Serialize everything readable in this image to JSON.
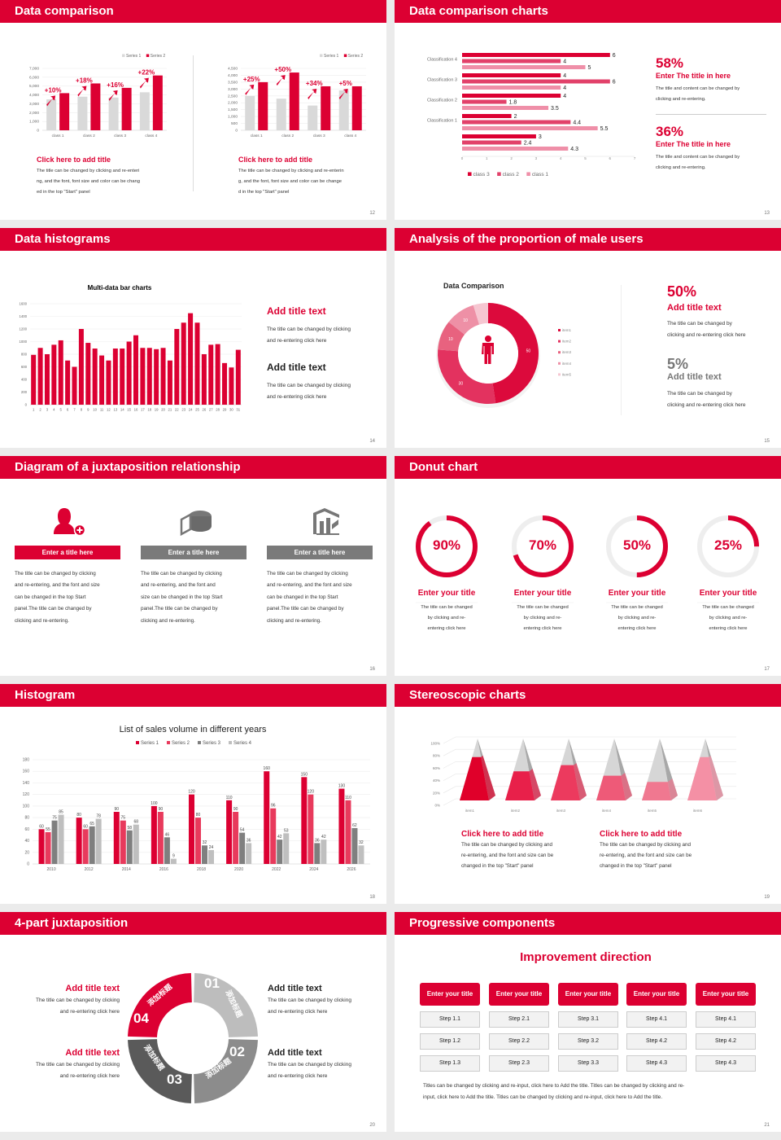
{
  "colors": {
    "accent": "#dc0032",
    "gray": "#d9d9d9"
  },
  "slides": {
    "s12": {
      "title": "Data comparison",
      "page": "12",
      "blocks": [
        {
          "heading": "Click here to add title",
          "lines": [
            "The title can be changed by clicking and re-enteri",
            "ng, and the font, font size and color can be chang",
            "ed in the top \"Start\" panel"
          ]
        },
        {
          "heading": "Click here to add title",
          "lines": [
            "The title can be changed by clicking and re-enterin",
            "g, and the font, font size and color can be change",
            "d in the top \"Start\" panel"
          ]
        }
      ]
    },
    "s13": {
      "title": "Data comparison charts",
      "page": "13",
      "stats": [
        {
          "value": "58%",
          "heading": "Enter The title in here",
          "lines": [
            "The title and content can be changed by",
            "clicking and re-entering."
          ]
        },
        {
          "value": "36%",
          "heading": "Enter The title in here",
          "lines": [
            "The title and content can be changed by",
            "clicking and re-entering."
          ]
        }
      ]
    },
    "s14": {
      "title": "Data histograms",
      "page": "14",
      "blocks": [
        {
          "heading": "Add title text",
          "lines": [
            "The title can be changed by clicking",
            "and re-entering click here"
          ]
        },
        {
          "heading": "Add title text",
          "lines": [
            "The title can be changed by clicking",
            "and re-entering click here"
          ]
        }
      ]
    },
    "s15": {
      "title": "Analysis of the proportion of male users",
      "page": "15",
      "stats": [
        {
          "value": "50%",
          "heading": "Add title text",
          "lines": [
            "The title can be changed by",
            "clicking and re-entering click here"
          ]
        },
        {
          "value": "5%",
          "heading": "Add title text",
          "lines": [
            "The title can be changed by",
            "clicking and re-entering click here"
          ]
        }
      ]
    },
    "s16": {
      "title": "Diagram of a juxtaposition relationship",
      "page": "16",
      "items": [
        {
          "icon": "user-add-icon",
          "label": "Enter a title here",
          "lines": [
            "The title can be changed by clicking",
            "and re-entering, and the font and size",
            "can be changed in the top Start",
            "panel.The title can be changed by",
            "clicking and re-entering."
          ]
        },
        {
          "icon": "pie-chart-icon",
          "label": "Enter a title here",
          "lines": [
            "The title can be changed by clicking",
            "and re-entering, and the font and",
            "size can be changed in the top Start",
            "panel.The title can be changed by",
            "clicking and re-entering."
          ]
        },
        {
          "icon": "building-chart-icon",
          "label": "Enter a title here",
          "lines": [
            "The title can be changed by clicking",
            "and re-entering, and the font and size",
            "can be changed in the top Start",
            "panel.The title can be changed by",
            "clicking and re-entering."
          ]
        }
      ]
    },
    "s17": {
      "title": "Donut chart",
      "page": "17",
      "items": [
        {
          "value": 90,
          "label": "90%",
          "heading": "Enter your title",
          "lines": [
            "The title can be changed",
            "by clicking and re-",
            "entering click here"
          ]
        },
        {
          "value": 70,
          "label": "70%",
          "heading": "Enter your title",
          "lines": [
            "The title can be changed",
            "by clicking and re-",
            "entering click here"
          ]
        },
        {
          "value": 50,
          "label": "50%",
          "heading": "Enter your title",
          "lines": [
            "The title can be changed",
            "by clicking and re-",
            "entering click here"
          ]
        },
        {
          "value": 25,
          "label": "25%",
          "heading": "Enter your title",
          "lines": [
            "The title can be changed",
            "by clicking and re-",
            "entering click here"
          ]
        }
      ]
    },
    "s18": {
      "title": "Histogram",
      "page": "18"
    },
    "s19": {
      "title": "Stereoscopic charts",
      "page": "19",
      "blocks": [
        {
          "heading": "Click here to add title",
          "lines": [
            "The title can be changed by clicking and",
            "re-entering, and the font and size can be",
            "changed in the top \"Start\" panel"
          ]
        },
        {
          "heading": "Click here to add title",
          "lines": [
            "The title can be changed by clicking and",
            "re-entering, and the font and size can be",
            "changed in the top \"Start\" panel"
          ]
        }
      ]
    },
    "s20": {
      "title": "4-part juxtaposition",
      "page": "20",
      "segments": [
        {
          "number": "01",
          "label": "添加标题"
        },
        {
          "number": "02",
          "label": "添加标题"
        },
        {
          "number": "03",
          "label": "添加标题"
        },
        {
          "number": "04",
          "label": "添加标题"
        }
      ],
      "blocks": [
        {
          "heading": "Add title text",
          "lines": [
            "The title can be changed by clicking",
            "and re-entering click here"
          ]
        },
        {
          "heading": "Add title text",
          "lines": [
            "The title can be changed by clicking",
            "and re-entering click here"
          ]
        },
        {
          "heading": "Add title text",
          "lines": [
            "The title can be changed by clicking",
            "and re-entering click here"
          ]
        },
        {
          "heading": "Add title text",
          "lines": [
            "The title can be changed by clicking",
            "and re-entering click here"
          ]
        }
      ]
    },
    "s21": {
      "title": "Progressive components",
      "page": "21",
      "heading": "Improvement direction",
      "columns": [
        {
          "title": "Enter your title",
          "steps": [
            "Step 1.1",
            "Step 1.2",
            "Step 1.3"
          ]
        },
        {
          "title": "Enter your title",
          "steps": [
            "Step 2.1",
            "Step 2.2",
            "Step 2.3"
          ]
        },
        {
          "title": "Enter your title",
          "steps": [
            "Step 3.1",
            "Step 3.2",
            "Step 3.3"
          ]
        },
        {
          "title": "Enter your title",
          "steps": [
            "Step 4.1",
            "Step 4.2",
            "Step 4.3"
          ]
        },
        {
          "title": "Enter your title",
          "steps": [
            "Step 4.1",
            "Step 4.2",
            "Step 4.3"
          ]
        }
      ],
      "footnote_lines": [
        "Titles can be changed by clicking and re-input, click here to Add the title. Titles can be changed by clicking and re-",
        "input, click here to Add the title. Titles can be changed by clicking and re-input, click here to Add the title."
      ]
    }
  },
  "chart_data": [
    {
      "type": "bar",
      "categories": [
        "class 1",
        "class 2",
        "class 3",
        "class 4"
      ],
      "series": [
        {
          "name": "Series 1",
          "values": [
            3500,
            3800,
            3700,
            4300
          ],
          "color": "#d9d9d9"
        },
        {
          "name": "Series 2",
          "values": [
            4200,
            5300,
            4800,
            6200
          ],
          "color": "#dc0032"
        }
      ],
      "annotations": [
        "+10%",
        "+18%",
        "+16%",
        "+22%"
      ],
      "ylim": [
        0,
        7000
      ],
      "yticks": [
        "0",
        "1,000",
        "2,000",
        "3,000",
        "4,000",
        "5,000",
        "6,000",
        "7,000"
      ],
      "legend": "top-right",
      "grid": true
    },
    {
      "type": "bar",
      "categories": [
        "class 1",
        "class 2",
        "class 3",
        "class 4"
      ],
      "series": [
        {
          "name": "Series 1",
          "values": [
            2500,
            2300,
            1800,
            2900
          ],
          "color": "#d9d9d9"
        },
        {
          "name": "Series 2",
          "values": [
            3500,
            4200,
            3200,
            3200
          ],
          "color": "#dc0032"
        }
      ],
      "annotations": [
        "+25%",
        "+50%",
        "+34%",
        "+5%"
      ],
      "ylim": [
        0,
        4500
      ],
      "yticks": [
        "0",
        "500",
        "1,000",
        "1,500",
        "2,000",
        "2,500",
        "3,000",
        "3,500",
        "4,000",
        "4,500"
      ],
      "legend": "top-right",
      "grid": true
    },
    {
      "type": "bar",
      "orientation": "horizontal",
      "categories": [
        "Classification 4",
        "Classification 3",
        "Classification 2",
        "Classification 1",
        ""
      ],
      "series": [
        {
          "name": "class 3",
          "values": [
            6,
            4,
            4,
            2,
            3
          ],
          "color": "#dc0032"
        },
        {
          "name": "class 2",
          "values": [
            4,
            6,
            1.8,
            4.4,
            2.4
          ],
          "color": "#e2416a"
        },
        {
          "name": "class 1",
          "values": [
            5,
            4,
            3.5,
            5.5,
            4.3
          ],
          "color": "#ef8fa8"
        }
      ],
      "xlim": [
        0,
        7
      ],
      "xticks": [
        "0",
        "1",
        "2",
        "3",
        "4",
        "5",
        "6",
        "7"
      ],
      "legend": "bottom",
      "grid": false
    },
    {
      "type": "bar",
      "title": "Multi-data bar charts",
      "categories": [
        "1",
        "2",
        "3",
        "4",
        "5",
        "6",
        "7",
        "8",
        "9",
        "10",
        "11",
        "12",
        "13",
        "14",
        "15",
        "16",
        "17",
        "18",
        "19",
        "20",
        "21",
        "22",
        "23",
        "24",
        "25",
        "26",
        "27",
        "28",
        "29",
        "30",
        "31"
      ],
      "series": [
        {
          "values": [
            790,
            900,
            800,
            950,
            1020,
            700,
            600,
            1200,
            980,
            890,
            780,
            700,
            890,
            890,
            1000,
            1100,
            900,
            900,
            880,
            900,
            700,
            1200,
            1300,
            1450,
            1300,
            800,
            950,
            960,
            660,
            590,
            870
          ],
          "color": "#dc0032"
        }
      ],
      "ylim": [
        0,
        1600
      ],
      "yticks": [
        "0",
        "200",
        "400",
        "600",
        "800",
        "1000",
        "1200",
        "1400",
        "1600"
      ],
      "grid": true
    },
    {
      "type": "pie",
      "title": "Data Comparison",
      "donut": true,
      "slices": [
        {
          "name": "item1",
          "value": 50,
          "label": "50",
          "color": "#dc0a3c"
        },
        {
          "name": "item2",
          "value": 30,
          "label": "30",
          "color": "#e3325f"
        },
        {
          "name": "item3",
          "value": 10,
          "label": "10",
          "color": "#e8627f"
        },
        {
          "name": "item4",
          "value": 10,
          "label": "10",
          "color": "#ee90a6"
        },
        {
          "name": "item5",
          "value": 5,
          "label": "",
          "color": "#f6c6d1"
        }
      ],
      "legend": "right"
    },
    {
      "type": "bar",
      "title": "List of sales volume in different years",
      "categories": [
        "2010",
        "2012",
        "2014",
        "2016",
        "2018",
        "2020",
        "2022",
        "2024",
        "2026"
      ],
      "series": [
        {
          "name": "Series 1",
          "values": [
            60,
            80,
            90,
            100,
            120,
            110,
            160,
            150,
            130
          ],
          "color": "#dc0032"
        },
        {
          "name": "Series 2",
          "values": [
            55,
            60,
            75,
            90,
            80,
            90,
            96,
            120,
            110
          ],
          "color": "#e83a5c"
        },
        {
          "name": "Series 3",
          "values": [
            75,
            65,
            58,
            46,
            32,
            54,
            42,
            36,
            62
          ],
          "color": "#7f7f7f"
        },
        {
          "name": "Series 4",
          "values": [
            85,
            78,
            68,
            9,
            24,
            36,
            53,
            42,
            32
          ],
          "color": "#bfbfbf"
        }
      ],
      "ylim": [
        0,
        180
      ],
      "yticks": [
        "0",
        "20",
        "40",
        "60",
        "80",
        "100",
        "120",
        "140",
        "160",
        "180"
      ],
      "legend": "top",
      "grid": true,
      "data_labels": true
    },
    {
      "type": "bar",
      "style": "3d-pyramid",
      "categories": [
        "item1",
        "item2",
        "item3",
        "item4",
        "item5",
        "item6"
      ],
      "values": [
        70,
        47,
        57,
        40,
        30,
        70
      ],
      "colors": [
        "#e0002a",
        "#e8204a",
        "#ec3a5e",
        "#ee5a78",
        "#f07890",
        "#f490a5"
      ],
      "ylim": [
        0,
        100
      ],
      "yticks": [
        "0%",
        "20%",
        "40%",
        "60%",
        "80%",
        "100%"
      ],
      "grid": true
    }
  ]
}
